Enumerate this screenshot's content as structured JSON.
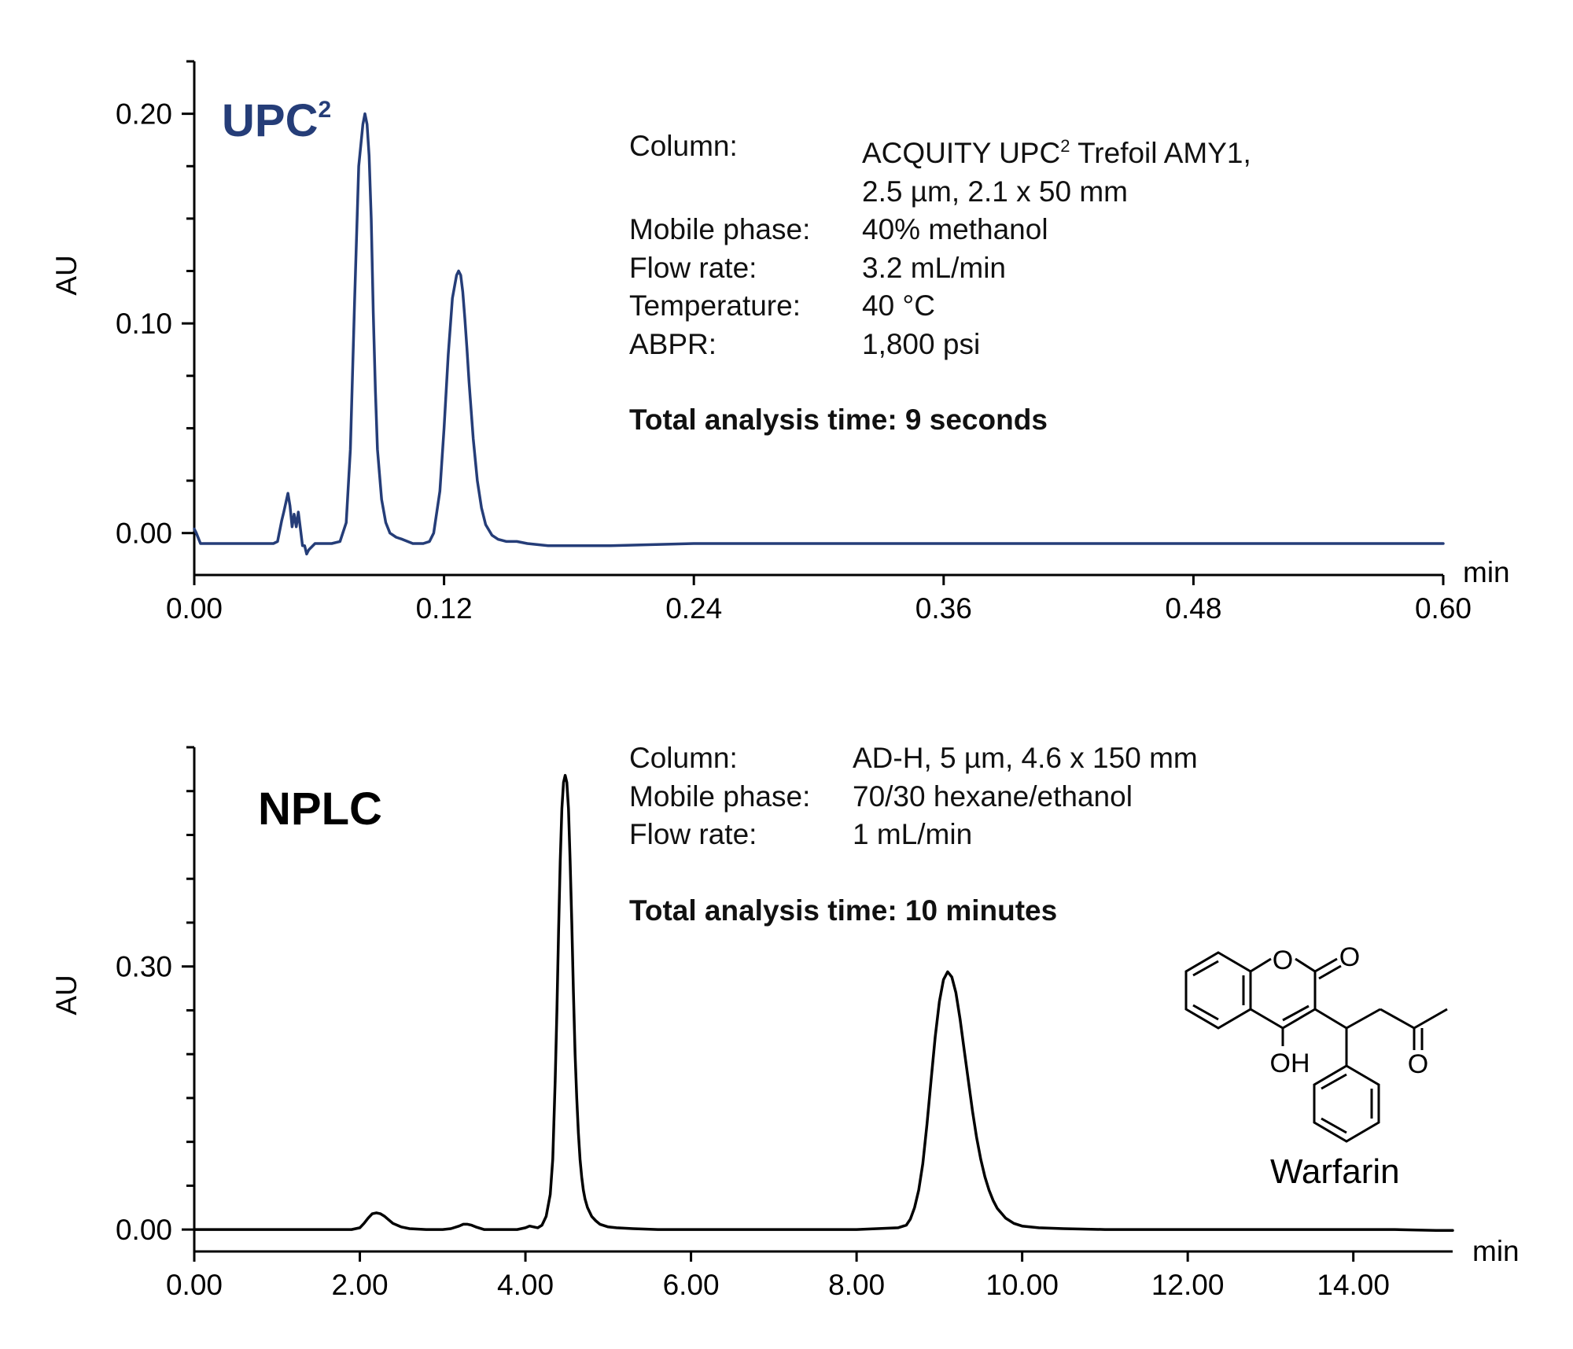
{
  "chart_data": [
    {
      "type": "line",
      "label": "UPC",
      "label_sup": "2",
      "label_color": "#253d78",
      "line_color": "#253d78",
      "xlabel": "min",
      "ylabel": "AU",
      "xlim": [
        0.0,
        0.6
      ],
      "ylim": [
        -0.02,
        0.225
      ],
      "xticks": [
        "0.00",
        "0.12",
        "0.24",
        "0.36",
        "0.48",
        "0.60"
      ],
      "yticks": [
        "0.00",
        "0.10",
        "0.20"
      ],
      "series": [
        {
          "x": [
            0.0,
            0.001,
            0.003,
            0.01,
            0.02,
            0.03,
            0.038,
            0.04,
            0.042,
            0.043,
            0.045,
            0.046,
            0.047,
            0.048,
            0.049,
            0.05,
            0.051,
            0.052,
            0.053,
            0.054,
            0.055,
            0.056,
            0.058,
            0.06,
            0.063,
            0.066,
            0.07,
            0.073,
            0.075,
            0.077,
            0.079,
            0.081,
            0.082,
            0.083,
            0.084,
            0.085,
            0.086,
            0.087,
            0.088,
            0.09,
            0.092,
            0.094,
            0.097,
            0.1,
            0.105,
            0.11,
            0.113,
            0.115,
            0.118,
            0.12,
            0.122,
            0.124,
            0.126,
            0.127,
            0.128,
            0.129,
            0.13,
            0.131,
            0.132,
            0.134,
            0.136,
            0.138,
            0.14,
            0.143,
            0.146,
            0.15,
            0.155,
            0.16,
            0.17,
            0.18,
            0.2,
            0.24,
            0.3,
            0.36,
            0.42,
            0.48,
            0.54,
            0.6
          ],
          "y": [
            0.002,
            0.0,
            -0.005,
            -0.005,
            -0.005,
            -0.005,
            -0.005,
            -0.004,
            0.006,
            0.01,
            0.019,
            0.013,
            0.003,
            0.009,
            0.003,
            0.01,
            0.002,
            -0.006,
            -0.006,
            -0.01,
            -0.008,
            -0.007,
            -0.005,
            -0.005,
            -0.005,
            -0.005,
            -0.004,
            0.005,
            0.04,
            0.11,
            0.175,
            0.195,
            0.2,
            0.195,
            0.18,
            0.15,
            0.105,
            0.068,
            0.04,
            0.016,
            0.005,
            0.0,
            -0.002,
            -0.003,
            -0.005,
            -0.005,
            -0.004,
            0.0,
            0.02,
            0.05,
            0.085,
            0.112,
            0.123,
            0.125,
            0.123,
            0.115,
            0.102,
            0.088,
            0.072,
            0.045,
            0.025,
            0.012,
            0.004,
            -0.001,
            -0.003,
            -0.004,
            -0.004,
            -0.005,
            -0.006,
            -0.006,
            -0.006,
            -0.005,
            -0.005,
            -0.005,
            -0.005,
            -0.005,
            -0.005,
            -0.005
          ]
        }
      ]
    },
    {
      "type": "line",
      "label": "NPLC",
      "label_color": "#000000",
      "line_color": "#000000",
      "xlabel": "min",
      "ylabel": "AU",
      "xlim": [
        0.0,
        15.2
      ],
      "ylim": [
        -0.025,
        0.55
      ],
      "xticks": [
        "0.00",
        "2.00",
        "4.00",
        "6.00",
        "8.00",
        "10.00",
        "12.00",
        "14.00"
      ],
      "yticks": [
        "0.00",
        "0.30"
      ],
      "series": [
        {
          "x": [
            0.0,
            1.0,
            1.9,
            2.0,
            2.05,
            2.1,
            2.15,
            2.2,
            2.25,
            2.3,
            2.35,
            2.4,
            2.5,
            2.6,
            2.8,
            3.0,
            3.1,
            3.2,
            3.25,
            3.3,
            3.35,
            3.4,
            3.5,
            3.7,
            3.9,
            4.0,
            4.05,
            4.1,
            4.15,
            4.2,
            4.25,
            4.3,
            4.33,
            4.36,
            4.38,
            4.4,
            4.42,
            4.44,
            4.46,
            4.48,
            4.5,
            4.52,
            4.54,
            4.56,
            4.58,
            4.6,
            4.62,
            4.64,
            4.66,
            4.68,
            4.7,
            4.72,
            4.75,
            4.8,
            4.85,
            4.9,
            5.0,
            5.1,
            5.3,
            5.6,
            6.0,
            7.0,
            8.0,
            8.5,
            8.6,
            8.65,
            8.7,
            8.75,
            8.8,
            8.85,
            8.9,
            8.95,
            9.0,
            9.05,
            9.1,
            9.15,
            9.2,
            9.25,
            9.3,
            9.35,
            9.4,
            9.45,
            9.5,
            9.55,
            9.6,
            9.65,
            9.7,
            9.8,
            9.9,
            10.0,
            10.2,
            10.5,
            11.0,
            12.0,
            13.0,
            14.0,
            14.5,
            15.0,
            15.2
          ],
          "y": [
            0.0,
            0.0,
            0.0,
            0.002,
            0.007,
            0.013,
            0.018,
            0.019,
            0.018,
            0.015,
            0.011,
            0.007,
            0.003,
            0.001,
            0.0,
            0.0,
            0.001,
            0.004,
            0.006,
            0.006,
            0.005,
            0.003,
            0.0,
            0.0,
            0.0,
            0.002,
            0.004,
            0.003,
            0.002,
            0.005,
            0.015,
            0.04,
            0.08,
            0.17,
            0.25,
            0.34,
            0.42,
            0.48,
            0.51,
            0.518,
            0.51,
            0.48,
            0.42,
            0.35,
            0.27,
            0.2,
            0.15,
            0.11,
            0.08,
            0.06,
            0.045,
            0.035,
            0.025,
            0.015,
            0.01,
            0.006,
            0.003,
            0.002,
            0.001,
            0.0,
            0.0,
            0.0,
            0.0,
            0.002,
            0.005,
            0.012,
            0.025,
            0.045,
            0.075,
            0.12,
            0.17,
            0.22,
            0.26,
            0.285,
            0.294,
            0.288,
            0.27,
            0.24,
            0.205,
            0.17,
            0.135,
            0.105,
            0.08,
            0.06,
            0.045,
            0.033,
            0.024,
            0.013,
            0.007,
            0.004,
            0.002,
            0.001,
            0.0,
            0.0,
            0.0,
            0.0,
            0.0,
            -0.001,
            -0.001
          ]
        }
      ]
    }
  ],
  "conditions_upc2": {
    "column_key": "Column:",
    "column_val_1a": "ACQUITY UPC",
    "column_val_1sup": "2",
    "column_val_1b": " Trefoil AMY1,",
    "column_val_2": "2.5 µm, 2.1 x 50 mm",
    "mobile_key": "Mobile phase:",
    "mobile_val": "40% methanol",
    "flow_key": "Flow rate:",
    "flow_val": "3.2 mL/min",
    "temp_key": "Temperature:",
    "temp_val": "40 °C",
    "abpr_key": "ABPR:",
    "abpr_val": "1,800 psi",
    "total": "Total analysis time: 9 seconds"
  },
  "conditions_nplc": {
    "column_key": "Column:",
    "column_val": "AD-H, 5 µm, 4.6 x 150 mm",
    "mobile_key": "Mobile phase:",
    "mobile_val": "70/30 hexane/ethanol",
    "flow_key": "Flow rate:",
    "flow_val": "1 mL/min",
    "total": "Total analysis time: 10 minutes"
  },
  "structure": {
    "name": "Warfarin",
    "ring_o": "O",
    "carbonyl_o": "O",
    "hydroxyl": "OH",
    "ketone_o": "O"
  }
}
